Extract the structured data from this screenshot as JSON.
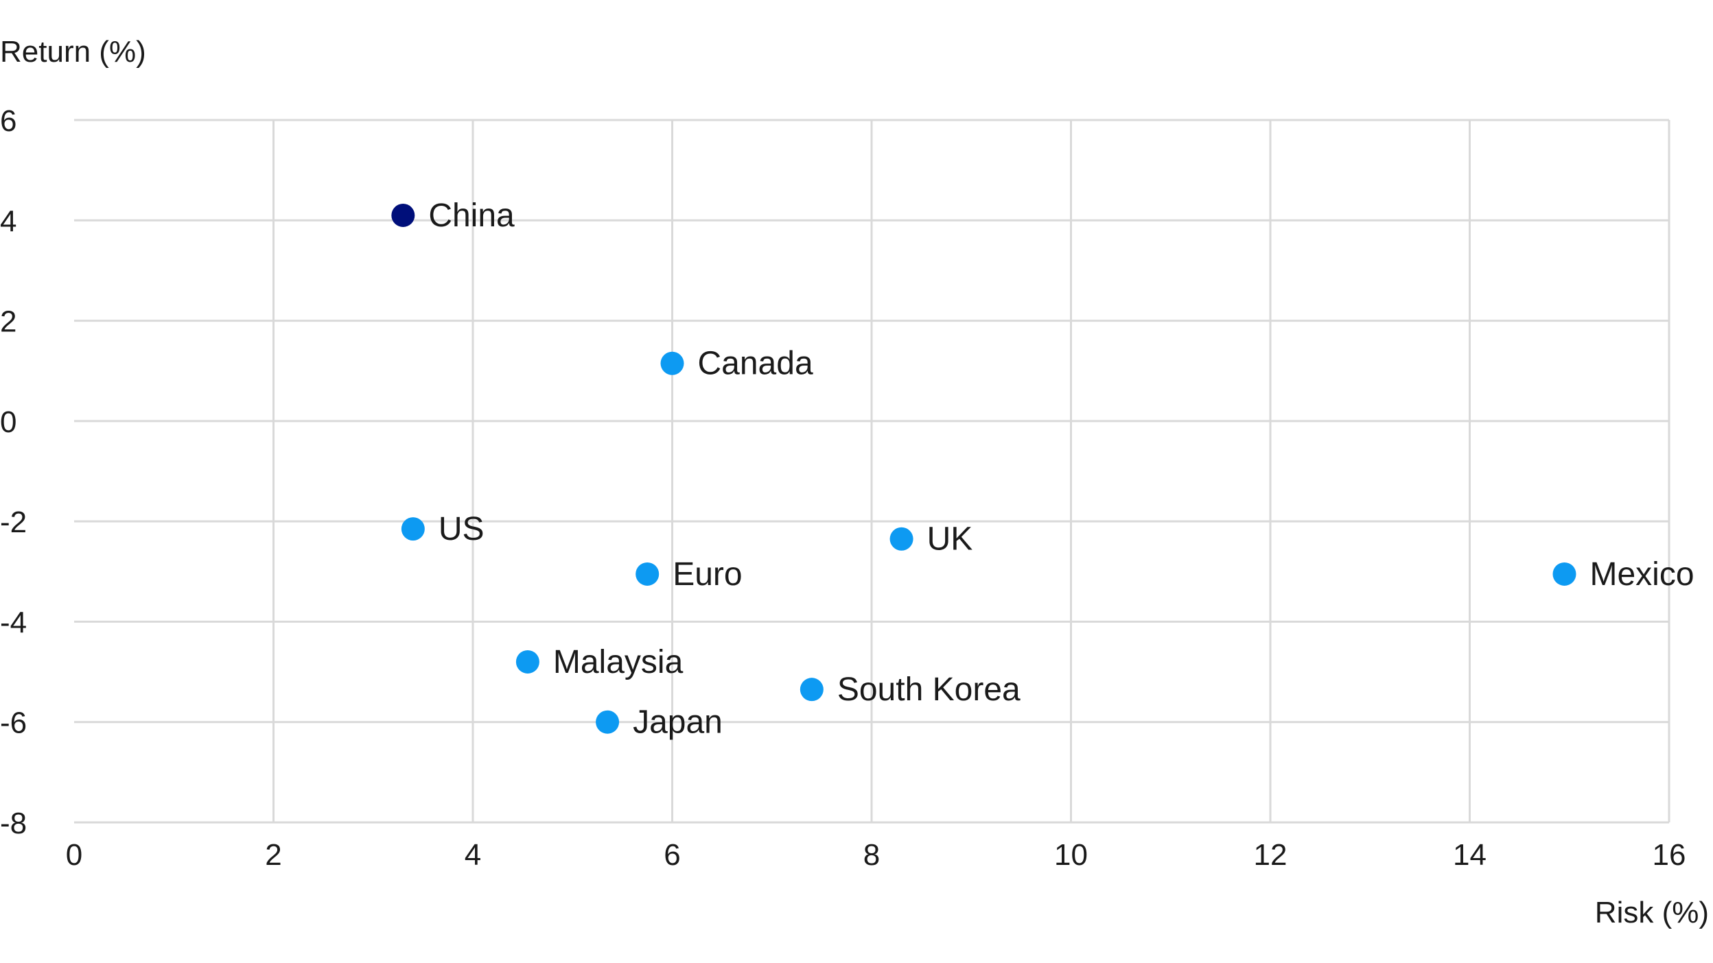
{
  "chart_data": {
    "type": "scatter",
    "title": "",
    "xlabel": "Risk (%)",
    "ylabel": "Return (%)",
    "xlim": [
      0,
      16
    ],
    "ylim": [
      -8,
      6
    ],
    "xticks": [
      "0",
      "2",
      "4",
      "6",
      "8",
      "10",
      "12",
      "14",
      "16"
    ],
    "yticks": [
      "6",
      "4",
      "2",
      "0",
      "-2",
      "-4",
      "-6",
      "-8"
    ],
    "grid": true,
    "colors": {
      "highlight": "#000f7a",
      "default": "#0d9af2",
      "grid": "#d9d9d9"
    },
    "points": [
      {
        "label": "China",
        "x": 3.3,
        "y": 4.1,
        "highlight": true
      },
      {
        "label": "Canada",
        "x": 6.0,
        "y": 1.15,
        "highlight": false
      },
      {
        "label": "US",
        "x": 3.4,
        "y": -2.15,
        "highlight": false
      },
      {
        "label": "Euro",
        "x": 5.75,
        "y": -3.05,
        "highlight": false
      },
      {
        "label": "UK",
        "x": 8.3,
        "y": -2.35,
        "highlight": false
      },
      {
        "label": "Mexico",
        "x": 14.95,
        "y": -3.05,
        "highlight": false
      },
      {
        "label": "Malaysia",
        "x": 4.55,
        "y": -4.8,
        "highlight": false
      },
      {
        "label": "South Korea",
        "x": 7.4,
        "y": -5.35,
        "highlight": false
      },
      {
        "label": "Japan",
        "x": 5.35,
        "y": -6.0,
        "highlight": false
      }
    ]
  }
}
